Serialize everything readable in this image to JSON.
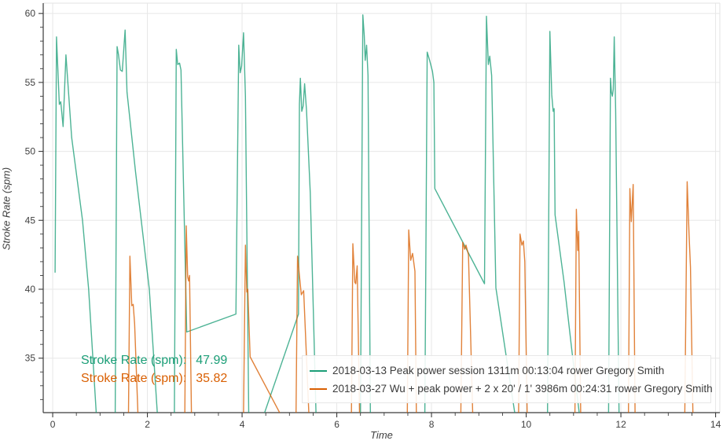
{
  "chart_data": {
    "type": "line",
    "title": "",
    "xlabel": "Time",
    "ylabel": "Stroke Rate (spm)",
    "xlim": [
      -0.2,
      14.09
    ],
    "ylim": [
      31.05,
      60.75
    ],
    "x_major_ticks": [
      0,
      2,
      4,
      6,
      8,
      10,
      12,
      14
    ],
    "x_minor_step": 0.5,
    "y_major_ticks": [
      35,
      40,
      45,
      50,
      55,
      60
    ],
    "y_minor_step": 1,
    "grid": "major-both",
    "legend_position": "bottom-center-inside",
    "colors": {
      "grid": "#e7e7e7",
      "axis_line": "#3a3a3a",
      "tick_label": "#3f3f3f",
      "plot_border": "#e3e3e3"
    },
    "series": [
      {
        "name": "2018-03-13 Peak power session 1311m 00:13:04 rower Gregory Smith",
        "color": "#1b9e77",
        "points": [
          [
            0.05,
            41.2
          ],
          [
            0.08,
            58.3
          ],
          [
            0.14,
            53.4
          ],
          [
            0.17,
            53.6
          ],
          [
            0.22,
            51.8
          ],
          [
            0.28,
            57.0
          ],
          [
            0.4,
            51.0
          ],
          [
            0.63,
            45.0
          ],
          [
            0.76,
            40.0
          ],
          [
            0.92,
            31.0
          ],
          [
            1.0,
            29.5
          ],
          [
            1.3,
            29.5
          ],
          [
            1.32,
            31.0
          ],
          [
            1.36,
            57.6
          ],
          [
            1.39,
            57.0
          ],
          [
            1.43,
            55.9
          ],
          [
            1.47,
            55.8
          ],
          [
            1.53,
            58.8
          ],
          [
            1.57,
            54.3
          ],
          [
            1.75,
            48.5
          ],
          [
            2.04,
            40.0
          ],
          [
            2.21,
            31.0
          ],
          [
            2.3,
            29.5
          ],
          [
            2.55,
            29.5
          ],
          [
            2.57,
            31.0
          ],
          [
            2.61,
            57.4
          ],
          [
            2.64,
            56.3
          ],
          [
            2.68,
            56.4
          ],
          [
            2.71,
            55.9
          ],
          [
            2.83,
            36.9
          ],
          [
            3.87,
            38.2
          ],
          [
            3.93,
            57.7
          ],
          [
            3.96,
            55.7
          ],
          [
            3.99,
            56.2
          ],
          [
            4.03,
            58.6
          ],
          [
            4.07,
            54.0
          ],
          [
            4.14,
            31.0
          ],
          [
            4.22,
            29.5
          ],
          [
            4.45,
            29.5
          ],
          [
            4.47,
            31.0
          ],
          [
            5.19,
            38.2
          ],
          [
            5.21,
            53.4
          ],
          [
            5.23,
            55.3
          ],
          [
            5.26,
            52.9
          ],
          [
            5.29,
            53.3
          ],
          [
            5.32,
            54.9
          ],
          [
            5.36,
            53.0
          ],
          [
            5.44,
            47.0
          ],
          [
            5.56,
            31.0
          ],
          [
            5.65,
            29.5
          ],
          [
            6.48,
            29.5
          ],
          [
            6.5,
            31.0
          ],
          [
            6.55,
            59.9
          ],
          [
            6.58,
            58.4
          ],
          [
            6.6,
            56.6
          ],
          [
            6.63,
            57.7
          ],
          [
            6.66,
            55.5
          ],
          [
            6.71,
            31.0
          ],
          [
            6.8,
            29.5
          ],
          [
            7.84,
            29.5
          ],
          [
            7.86,
            31.0
          ],
          [
            7.91,
            57.2
          ],
          [
            7.96,
            56.6
          ],
          [
            8.02,
            55.8
          ],
          [
            8.05,
            55.0
          ],
          [
            8.07,
            47.3
          ],
          [
            9.12,
            40.4
          ],
          [
            9.16,
            59.8
          ],
          [
            9.2,
            56.3
          ],
          [
            9.23,
            56.9
          ],
          [
            9.27,
            55.5
          ],
          [
            9.36,
            40.1
          ],
          [
            9.57,
            35.3
          ],
          [
            9.76,
            31.0
          ],
          [
            9.85,
            29.5
          ],
          [
            10.43,
            29.5
          ],
          [
            10.45,
            31.0
          ],
          [
            10.5,
            58.7
          ],
          [
            10.54,
            54.1
          ],
          [
            10.57,
            52.9
          ],
          [
            10.59,
            53.1
          ],
          [
            10.61,
            45.4
          ],
          [
            10.8,
            40.5
          ],
          [
            10.97,
            35.4
          ],
          [
            11.12,
            31.0
          ],
          [
            11.2,
            29.5
          ],
          [
            11.72,
            29.5
          ],
          [
            11.74,
            31.0
          ],
          [
            11.78,
            55.3
          ],
          [
            11.8,
            54.3
          ],
          [
            11.82,
            54.0
          ],
          [
            11.84,
            54.5
          ],
          [
            11.86,
            58.3
          ],
          [
            11.89,
            53.0
          ],
          [
            11.96,
            31.0
          ],
          [
            12.03,
            29.5
          ]
        ]
      },
      {
        "name": "2018-03-27 Wu + peak power + 2 x 20' / 1' 3986m 00:24:31 rower Gregory Smith",
        "color": "#d95f02",
        "points": [
          [
            1.58,
            29.5
          ],
          [
            1.6,
            31.0
          ],
          [
            1.63,
            42.4
          ],
          [
            1.67,
            38.8
          ],
          [
            1.7,
            38.9
          ],
          [
            1.73,
            37.5
          ],
          [
            1.8,
            31.0
          ],
          [
            1.86,
            29.5
          ],
          [
            2.77,
            29.5
          ],
          [
            2.79,
            31.0
          ],
          [
            2.82,
            44.6
          ],
          [
            2.85,
            40.9
          ],
          [
            2.87,
            40.6
          ],
          [
            2.89,
            41.0
          ],
          [
            2.93,
            31.0
          ],
          [
            3.0,
            29.5
          ],
          [
            4.01,
            29.5
          ],
          [
            4.03,
            31.0
          ],
          [
            4.07,
            43.2
          ],
          [
            4.1,
            39.8
          ],
          [
            4.12,
            40.0
          ],
          [
            4.17,
            35.1
          ],
          [
            4.8,
            31.0
          ],
          [
            4.9,
            29.5
          ],
          [
            5.12,
            29.5
          ],
          [
            5.14,
            31.0
          ],
          [
            5.17,
            42.4
          ],
          [
            5.25,
            39.6
          ],
          [
            5.3,
            39.9
          ],
          [
            5.41,
            31.0
          ],
          [
            5.5,
            29.5
          ],
          [
            6.29,
            29.5
          ],
          [
            6.31,
            31.0
          ],
          [
            6.34,
            43.3
          ],
          [
            6.38,
            40.5
          ],
          [
            6.4,
            40.4
          ],
          [
            6.43,
            41.7
          ],
          [
            6.48,
            31.0
          ],
          [
            6.56,
            29.5
          ],
          [
            7.47,
            29.5
          ],
          [
            7.49,
            31.0
          ],
          [
            7.52,
            44.3
          ],
          [
            7.56,
            42.1
          ],
          [
            7.6,
            42.6
          ],
          [
            7.65,
            41.3
          ],
          [
            7.68,
            31.0
          ],
          [
            7.76,
            29.5
          ],
          [
            8.6,
            29.5
          ],
          [
            8.62,
            31.0
          ],
          [
            8.66,
            43.4
          ],
          [
            8.7,
            42.9
          ],
          [
            8.73,
            43.2
          ],
          [
            8.78,
            42.5
          ],
          [
            8.87,
            31.0
          ],
          [
            8.95,
            29.5
          ],
          [
            9.82,
            29.5
          ],
          [
            9.84,
            31.0
          ],
          [
            9.87,
            44.0
          ],
          [
            9.91,
            43.2
          ],
          [
            9.94,
            43.5
          ],
          [
            9.97,
            42.0
          ],
          [
            10.02,
            31.0
          ],
          [
            10.1,
            29.5
          ],
          [
            11.01,
            29.5
          ],
          [
            11.03,
            31.0
          ],
          [
            11.06,
            45.8
          ],
          [
            11.09,
            42.8
          ],
          [
            11.11,
            44.2
          ],
          [
            11.15,
            31.0
          ],
          [
            11.22,
            29.5
          ],
          [
            12.14,
            29.5
          ],
          [
            12.16,
            31.0
          ],
          [
            12.19,
            47.3
          ],
          [
            12.22,
            44.9
          ],
          [
            12.26,
            47.6
          ],
          [
            12.3,
            31.0
          ],
          [
            12.38,
            29.5
          ],
          [
            13.33,
            29.5
          ],
          [
            13.35,
            31.0
          ],
          [
            13.4,
            47.8
          ],
          [
            13.44,
            44.0
          ],
          [
            13.47,
            41.6
          ],
          [
            13.52,
            31.0
          ],
          [
            13.6,
            29.5
          ]
        ]
      }
    ],
    "annotations": [
      {
        "label": "Stroke Rate (spm):",
        "value": "47.99",
        "color": "#1b9e77"
      },
      {
        "label": "Stroke Rate (spm):",
        "value": "35.82",
        "color": "#d95f02"
      }
    ]
  }
}
